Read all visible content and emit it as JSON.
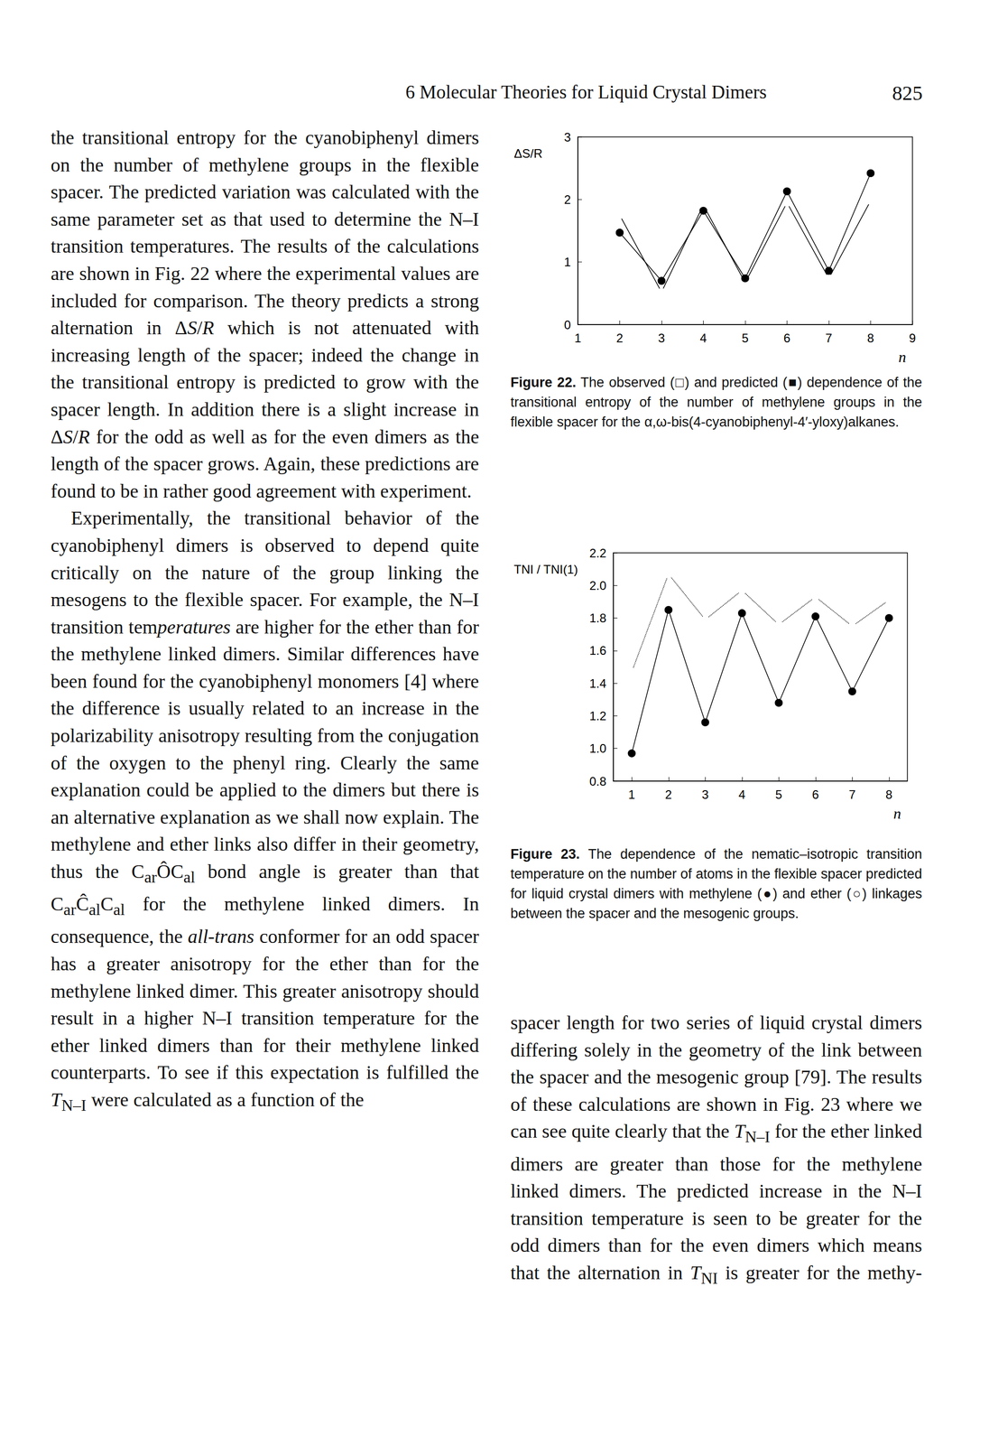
{
  "header": {
    "title": "6 Molecular Theories for Liquid Crystal Dimers",
    "page": "825"
  },
  "left_column": [
    "the transitional entropy for the cyanobiphenyl dimers on the number of methylene groups in the flexible spacer. The predicted variation was calculated with the same parameter set as that used to determine the N–I transition temperatures. The results of the calculations are shown in Fig. 22 where the experimental values are included for comparison. The theory predicts a strong alternation in Δ<i>S</i>/<i>R</i> which is not attenuated with increasing length of the spacer; indeed the change in the transitional entropy is predicted to grow with the spacer length. In addition there is a slight increase in Δ<i>S</i>/<i>R</i> for the odd as well as for the even dimers as the length of the spacer grows. Again, these predictions are found to be in rather good agreement with experiment.",
    "Experimentally, the transitional behavior of the cyanobiphenyl dimers is observed to depend quite critically on the nature of the group linking the mesogens to the flexible spacer. For example, the N–I transition tem<i>peratures</i> are higher for the ether than for the methylene linked dimers. Similar differences have been found for the cyanobiphenyl monomers [4] where the difference is usually related to an increase in the polarizability anisotropy resulting from the conjugation of the oxygen to the phenyl ring. Clearly the same explanation could be applied to the dimers but there is an alternative explanation as we shall now explain. The methylene and ether links also differ in their geometry, thus the C<sub>ar</sub>ÔC<sub>al</sub> bond angle is greater than that C<sub>ar</sub>Ĉ<sub>al</sub>C<sub>al</sub> for the methylene linked dimers. In consequence, the <i>all-trans</i> conformer for an odd spacer has a greater anisotropy for the ether than for the methylene linked dimer. This greater anisotropy should result in a higher N–I transition temperature for the ether linked dimers than for their methylene linked counterparts. To see if this expectation is fulfilled the <i>T</i><sub>N–I</sub> were calculated as a function of the"
  ],
  "right_column": [
    "spacer length for two series of liquid crystal dimers differing solely in the geometry of the link between the spacer and the mesogenic group [79]. The results of these calculations are shown in Fig. 23 where we can see quite clearly that the <i>T</i><sub>N–I</sub> for the ether linked dimers are greater than those for the methylene linked dimers. The predicted increase in the N–I transition temperature is seen to be greater for the odd dimers than for the even dimers which means that the alternation in <i>T</i><sub>NI</sub> is greater for the methy-"
  ],
  "chart_data": [
    {
      "type": "line",
      "caption": {
        "label": "Figure 22.",
        "text": "The observed (□) and predicted (■) dependence of the transitional entropy of the number of methylene groups in the flexible spacer for the α,ω-bis(4-cyanobiphenyl-4′-yloxy)alkanes."
      },
      "x_label": "n",
      "y_label": "ΔS/R",
      "xlim": [
        1,
        9
      ],
      "xticks": [
        1,
        2,
        3,
        4,
        5,
        6,
        7,
        8,
        9
      ],
      "ylim": [
        0,
        3
      ],
      "yticks": [
        0,
        1,
        2,
        3
      ],
      "grid": false,
      "series": [
        {
          "name": "observed",
          "color": "#000000",
          "marker": "open_circle",
          "line_style": "solid",
          "x": [
            2,
            3,
            4,
            5,
            6,
            7,
            8
          ],
          "values": [
            1.75,
            0.52,
            1.91,
            0.67,
            1.95,
            0.74,
            1.98
          ]
        },
        {
          "name": "predicted",
          "color": "#000000",
          "marker": "filled_circle",
          "line_style": "solid",
          "x": [
            2,
            3,
            4,
            5,
            6,
            7,
            8
          ],
          "values": [
            1.47,
            0.7,
            1.82,
            0.74,
            2.13,
            0.86,
            2.42
          ]
        }
      ]
    },
    {
      "type": "line",
      "caption": {
        "label": "Figure 23.",
        "text": "The dependence of the nematic–isotropic transition temperature on the number of atoms in the flexible spacer predicted for liquid crystal dimers with methylene (●) and ether (○) linkages between the spacer and the mesogenic groups."
      },
      "x_label": "n",
      "y_label": "TNI / TNI(1)",
      "xlim": [
        0.5,
        8.5
      ],
      "xticks": [
        1,
        2,
        3,
        4,
        5,
        6,
        7,
        8
      ],
      "ylim": [
        0.8,
        2.2
      ],
      "yticks": [
        0.8,
        {
          "value": 1,
          "label": "1.0"
        },
        1.2,
        1.4,
        1.6,
        1.8,
        {
          "value": 2,
          "label": "2.0"
        },
        2.2
      ],
      "grid": false,
      "series": [
        {
          "name": "methylene",
          "color": "#000000",
          "marker": "filled_circle",
          "line_style": "solid",
          "x": [
            1,
            2,
            3,
            4,
            5,
            6,
            7,
            8
          ],
          "values": [
            0.97,
            1.85,
            1.16,
            1.83,
            1.28,
            1.81,
            1.35,
            1.8
          ]
        },
        {
          "name": "ether",
          "color": "#000000",
          "marker": "open_circle",
          "line_style": "dotted",
          "x": [
            1,
            2,
            3,
            4,
            5,
            6,
            7,
            8
          ],
          "values": [
            1.47,
            2.07,
            1.79,
            1.97,
            1.76,
            1.93,
            1.75,
            1.91
          ]
        }
      ]
    }
  ]
}
